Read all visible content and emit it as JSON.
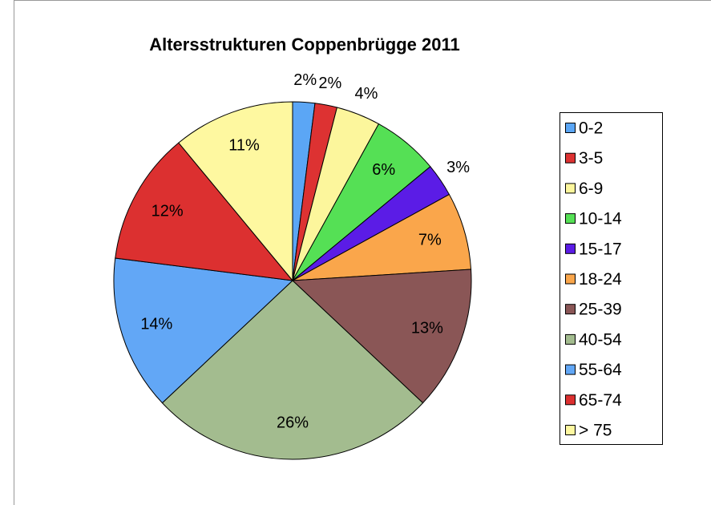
{
  "chart_data": {
    "type": "pie",
    "title": "Altersstrukturen Coppenbrügge 2011",
    "categories": [
      "0-2",
      "3-5",
      "6-9",
      "10-14",
      "15-17",
      "18-24",
      "25-39",
      "40-54",
      "55-64",
      "65-74",
      "> 75"
    ],
    "values": [
      2,
      2,
      4,
      6,
      3,
      7,
      13,
      26,
      14,
      12,
      11
    ],
    "value_labels": [
      "2%",
      "2%",
      "4%",
      "6%",
      "3%",
      "7%",
      "13%",
      "26%",
      "14%",
      "12%",
      "11%"
    ],
    "colors": [
      "#5ba6f5",
      "#dd3232",
      "#fcf69c",
      "#55e055",
      "#5b1ce6",
      "#faa64b",
      "#8a5656",
      "#a3bc8f",
      "#62a7f6",
      "#dc3030",
      "#fef8a0"
    ],
    "legend": "right"
  }
}
